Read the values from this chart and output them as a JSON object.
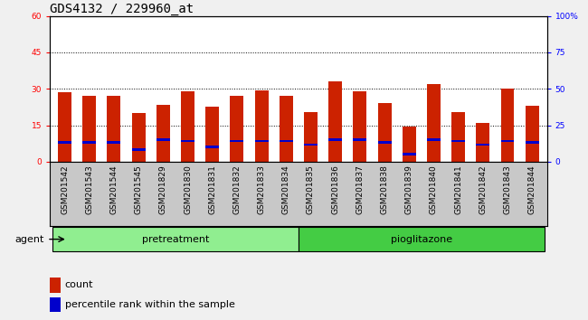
{
  "title": "GDS4132 / 229960_at",
  "samples": [
    "GSM201542",
    "GSM201543",
    "GSM201544",
    "GSM201545",
    "GSM201829",
    "GSM201830",
    "GSM201831",
    "GSM201832",
    "GSM201833",
    "GSM201834",
    "GSM201835",
    "GSM201836",
    "GSM201837",
    "GSM201838",
    "GSM201839",
    "GSM201840",
    "GSM201841",
    "GSM201842",
    "GSM201843",
    "GSM201844"
  ],
  "count_values": [
    28.5,
    27.0,
    27.0,
    20.0,
    23.5,
    29.0,
    22.5,
    27.0,
    29.5,
    27.0,
    20.5,
    33.0,
    29.0,
    24.0,
    14.5,
    32.0,
    20.5,
    16.0,
    30.0,
    23.0
  ],
  "percentile_values": [
    8.0,
    8.0,
    8.0,
    5.0,
    9.0,
    8.5,
    6.0,
    8.5,
    8.5,
    8.5,
    7.0,
    9.0,
    9.0,
    8.0,
    3.0,
    9.0,
    8.5,
    7.0,
    8.5,
    8.0
  ],
  "groups": [
    {
      "label": "pretreatment",
      "start": 0,
      "end": 10,
      "color": "#90ee90"
    },
    {
      "label": "pioglitazone",
      "start": 10,
      "end": 20,
      "color": "#44cc44"
    }
  ],
  "bar_color": "#cc2200",
  "percentile_color": "#0000cc",
  "left_ylim": [
    0,
    60
  ],
  "right_ylim": [
    0,
    100
  ],
  "left_yticks": [
    0,
    15,
    30,
    45,
    60
  ],
  "right_yticks": [
    0,
    25,
    50,
    75,
    100
  ],
  "right_yticklabels": [
    "0",
    "25",
    "50",
    "75",
    "100%"
  ],
  "grid_values": [
    15,
    30,
    45
  ],
  "agent_label": "agent",
  "legend_count_label": "count",
  "legend_percentile_label": "percentile rank within the sample",
  "bar_width": 0.55,
  "title_fontsize": 10,
  "tick_fontsize": 6.5,
  "label_fontsize": 8,
  "group_fontsize": 8,
  "fig_bg_color": "#f0f0f0",
  "plot_bg_color": "#ffffff",
  "xtick_bg_color": "#c8c8c8"
}
